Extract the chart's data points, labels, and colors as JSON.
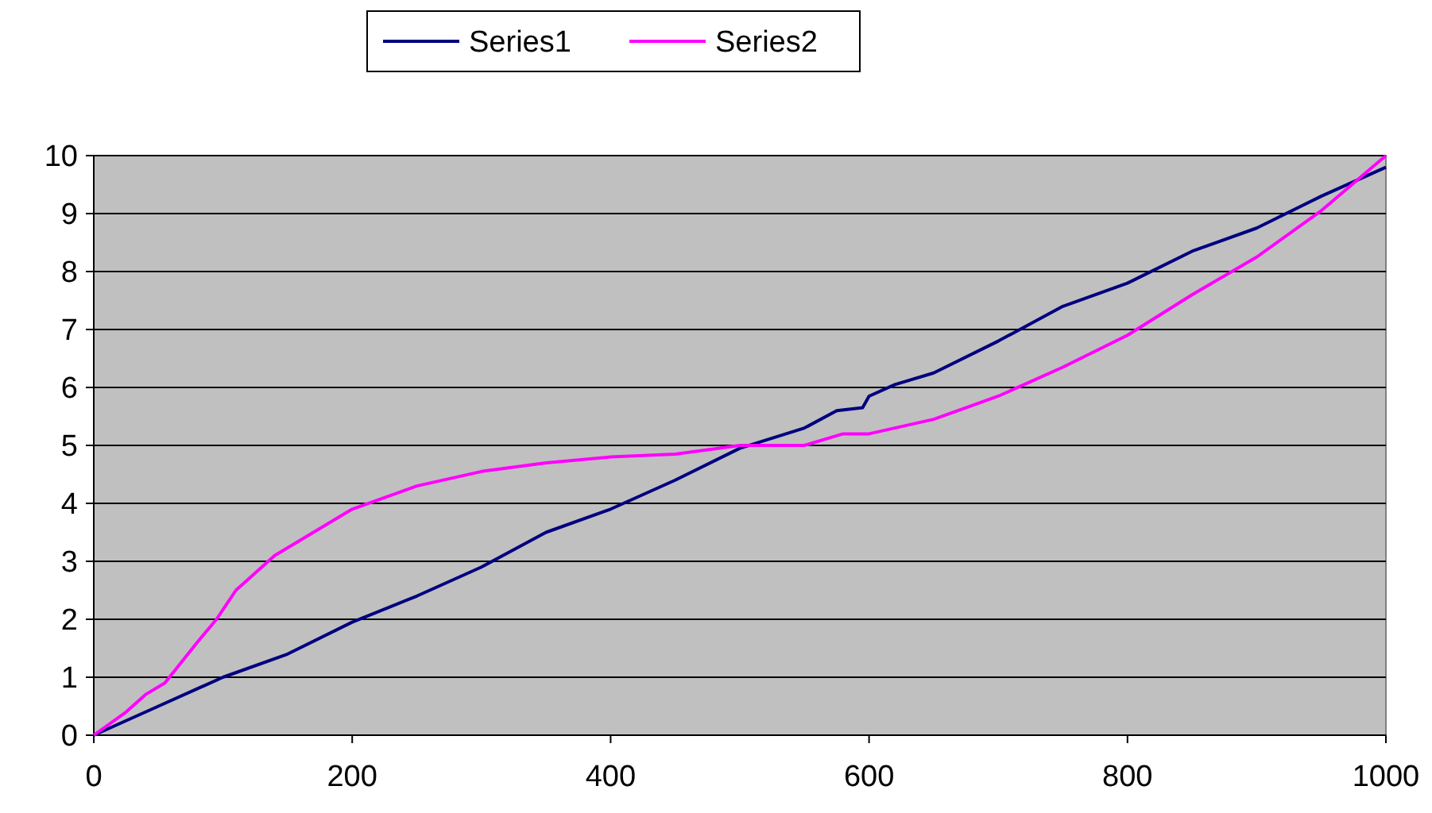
{
  "chart_data": {
    "type": "line",
    "xlim": [
      0,
      1000
    ],
    "xticks": [
      0,
      200,
      400,
      600,
      800,
      1000
    ],
    "ylim": [
      0,
      10
    ],
    "yticks": [
      0,
      1,
      2,
      3,
      4,
      5,
      6,
      7,
      8,
      9,
      10
    ],
    "grid": "y",
    "legend": "top",
    "line_style": "solid",
    "series": [
      {
        "name": "Series1",
        "color": "#000080",
        "x": [
          0,
          50,
          100,
          150,
          200,
          250,
          300,
          350,
          400,
          450,
          500,
          550,
          575,
          595,
          600,
          620,
          650,
          700,
          750,
          800,
          850,
          900,
          950,
          1000
        ],
        "values": [
          0,
          0.5,
          1.0,
          1.4,
          1.95,
          2.4,
          2.9,
          3.5,
          3.9,
          4.4,
          4.95,
          5.3,
          5.6,
          5.65,
          5.85,
          6.05,
          6.25,
          6.8,
          7.4,
          7.8,
          8.35,
          8.75,
          9.3,
          9.8
        ]
      },
      {
        "name": "Series2",
        "color": "#ff00ff",
        "x": [
          0,
          25,
          40,
          55,
          80,
          95,
          110,
          140,
          200,
          250,
          300,
          350,
          400,
          450,
          500,
          550,
          580,
          600,
          650,
          700,
          750,
          800,
          850,
          900,
          950,
          1000
        ],
        "values": [
          0,
          0.4,
          0.7,
          0.9,
          1.6,
          2.0,
          2.5,
          3.1,
          3.9,
          4.3,
          4.55,
          4.7,
          4.8,
          4.85,
          5.0,
          5.0,
          5.2,
          5.2,
          5.45,
          5.85,
          6.35,
          6.9,
          7.6,
          8.25,
          9.05,
          10.0
        ]
      }
    ]
  }
}
